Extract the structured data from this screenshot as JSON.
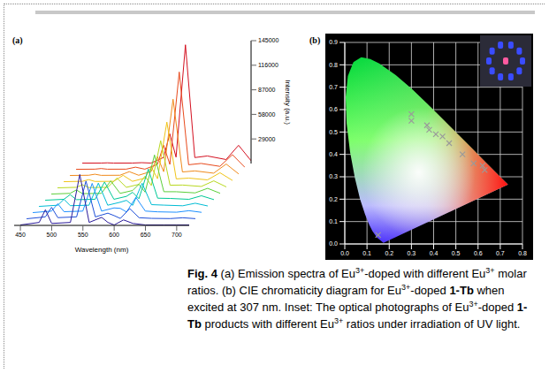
{
  "chart_data": [
    {
      "panel": "(a)",
      "type": "line",
      "x_label": "Wavelength (nm)",
      "y_label": "Intensity (a.u.)",
      "x": [
        450,
        480,
        490,
        500,
        530,
        545,
        560,
        580,
        590,
        600,
        615,
        630,
        650,
        680,
        700,
        720
      ],
      "series": [
        {
          "color": "#2a1a9a",
          "values": [
            500,
            3500,
            18500,
            2300,
            3500,
            60000,
            3500,
            9500,
            3500,
            500,
            6500,
            2300,
            500,
            500,
            500,
            500
          ]
        },
        {
          "color": "#1f4fd8",
          "values": [
            500,
            2750,
            14000,
            1850,
            2750,
            45000,
            2750,
            7150,
            4250,
            900,
            12500,
            1750,
            980,
            740,
            1700,
            660
          ]
        },
        {
          "color": "#1e90ff",
          "values": [
            500,
            2250,
            11000,
            1550,
            2250,
            35000,
            2250,
            6000,
            5500,
            1250,
            18500,
            2300,
            1400,
            950,
            2750,
            800
          ]
        },
        {
          "color": "#00bcd4",
          "values": [
            500,
            1900,
            8900,
            1340,
            1900,
            28000,
            1900,
            5450,
            7650,
            1750,
            27800,
            2590,
            2000,
            1250,
            4250,
            1000
          ]
        },
        {
          "color": "#00c896",
          "values": [
            500,
            1600,
            7100,
            1160,
            1600,
            22000,
            1600,
            5050,
            9850,
            2250,
            37200,
            2910,
            2600,
            1550,
            5750,
            1200
          ]
        },
        {
          "color": "#5ccf3a",
          "values": [
            500,
            1300,
            5300,
            980,
            1300,
            16000,
            1300,
            4650,
            12050,
            2750,
            46600,
            3230,
            3200,
            1850,
            7250,
            1400
          ]
        },
        {
          "color": "#b8d820",
          "values": [
            500,
            1100,
            4100,
            860,
            1100,
            12000,
            1100,
            4550,
            14350,
            3250,
            56200,
            3610,
            3800,
            2150,
            8750,
            1600
          ]
        },
        {
          "color": "#f0c419",
          "values": [
            500,
            900,
            2900,
            740,
            900,
            8000,
            900,
            4700,
            17900,
            4000,
            70800,
            3740,
            4700,
            2600,
            11000,
            1900
          ]
        },
        {
          "color": "#f08a1c",
          "values": [
            500,
            750,
            2000,
            650,
            750,
            5000,
            750,
            5250,
            22750,
            5000,
            90500,
            4650,
            5900,
            3200,
            14000,
            2300
          ]
        },
        {
          "color": "#e84a1c",
          "values": [
            500,
            650,
            1400,
            590,
            650,
            3000,
            650,
            6200,
            28900,
            6250,
            115300,
            5840,
            7400,
            3950,
            17750,
            2800
          ]
        },
        {
          "color": "#d41020",
          "values": [
            500,
            550,
            800,
            530,
            550,
            1000,
            550,
            7150,
            35050,
            7500,
            140100,
            7030,
            8900,
            4700,
            21500,
            3300
          ]
        }
      ],
      "xlim": [
        440,
        720
      ],
      "xticks": [
        450,
        500,
        550,
        600,
        650,
        700
      ],
      "ylim": [
        0,
        145000
      ],
      "yticks": [
        29000,
        58000,
        87000,
        116000,
        145000
      ],
      "grid": false
    },
    {
      "panel": "(b)",
      "type": "scatter",
      "locus": {
        "x": [
          0.1741,
          0.144,
          0.1241,
          0.1096,
          0.0913,
          0.0687,
          0.0454,
          0.0235,
          0.0082,
          0.0039,
          0.0139,
          0.0389,
          0.0743,
          0.1142,
          0.1547,
          0.2296,
          0.3016,
          0.3731,
          0.4441,
          0.5125,
          0.5752,
          0.627,
          0.6915,
          0.7347
        ],
        "y": [
          0.005,
          0.0297,
          0.0578,
          0.0868,
          0.1327,
          0.2007,
          0.295,
          0.4127,
          0.5384,
          0.6548,
          0.7502,
          0.812,
          0.8338,
          0.8262,
          0.8059,
          0.7543,
          0.6923,
          0.6245,
          0.5547,
          0.4866,
          0.4242,
          0.3725,
          0.3083,
          0.2653
        ]
      },
      "x": [
        0.15,
        0.3,
        0.3,
        0.37,
        0.38,
        0.41,
        0.44,
        0.47,
        0.53,
        0.58,
        0.62,
        0.63
      ],
      "y": [
        0.04,
        0.58,
        0.55,
        0.53,
        0.51,
        0.49,
        0.48,
        0.45,
        0.4,
        0.36,
        0.35,
        0.33
      ],
      "marker": "cross",
      "color": "#9a9a9a",
      "xlim": [
        0,
        0.8
      ],
      "xticks": [
        {
          "value": 0,
          "label": "0.0"
        },
        0.1,
        0.2,
        0.3,
        0.4,
        0.5,
        0.6,
        0.7,
        0.8
      ],
      "ylim": [
        0,
        0.9
      ],
      "yticks": [
        {
          "value": 0,
          "label": "0.0"
        },
        0.1,
        0.2,
        0.3,
        0.4,
        0.5,
        0.6,
        0.7,
        0.8,
        0.9
      ],
      "grid": true
    }
  ],
  "caption": [
    {
      "text": "Fig. 4",
      "bold": true
    },
    {
      "text": " (a) Emission spectra of Eu"
    },
    {
      "text": "3+",
      "sup": true
    },
    {
      "text": "-doped with different Eu"
    },
    {
      "text": "3+",
      "sup": true
    },
    {
      "text": " molar ratios. (b) CIE chromaticity diagram for Eu"
    },
    {
      "text": "3+",
      "sup": true
    },
    {
      "text": "-doped "
    },
    {
      "text": "1-Tb",
      "bold": true
    },
    {
      "text": " when excited at 307 nm. Inset: The optical photographs of Eu"
    },
    {
      "text": "3+",
      "sup": true
    },
    {
      "text": "-doped "
    },
    {
      "text": "1-Tb",
      "bold": true
    },
    {
      "text": " products with different Eu"
    },
    {
      "text": "3+",
      "sup": true
    },
    {
      "text": " ratios under irradiation of UV light."
    }
  ]
}
